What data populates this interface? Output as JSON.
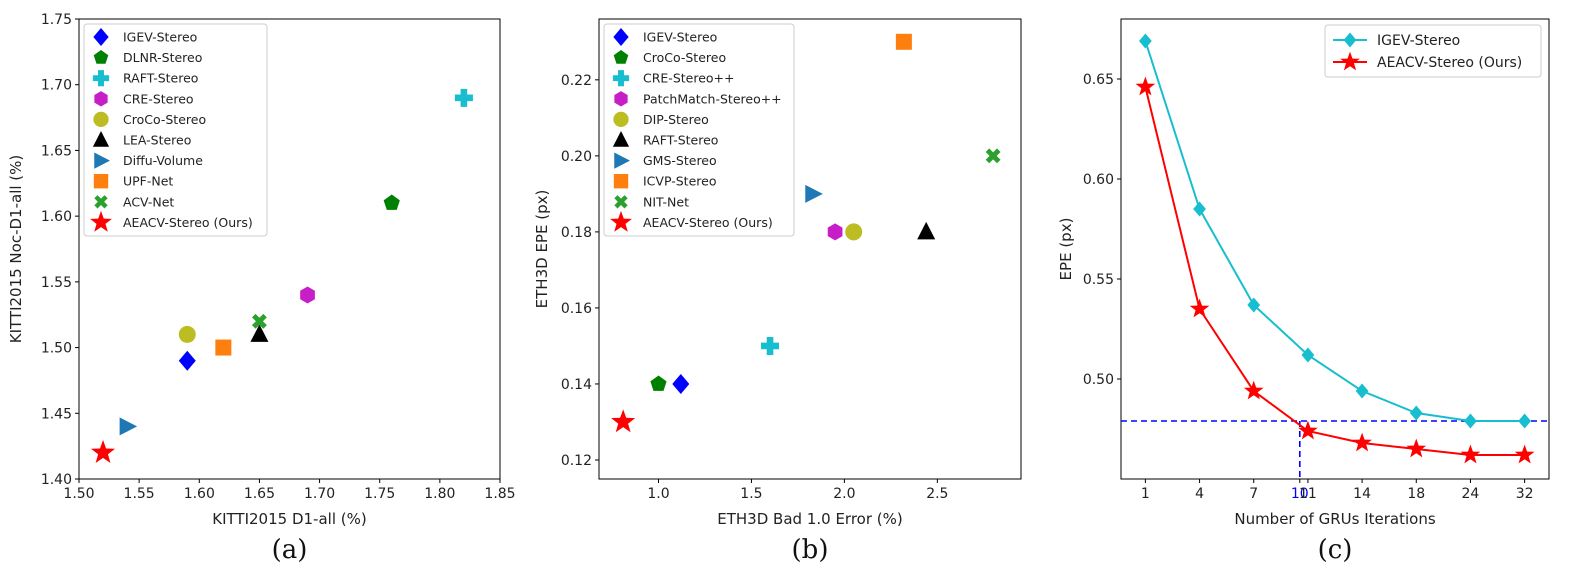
{
  "chart_data": [
    {
      "type": "scatter",
      "panel_label": "(a)",
      "xlabel": "KITTI2015 D1-all (%)",
      "ylabel": "KITTI2015 Noc-D1-all (%)",
      "xlim": [
        1.5,
        1.85
      ],
      "ylim": [
        1.4,
        1.75
      ],
      "xticks": [
        "1.50",
        "1.55",
        "1.60",
        "1.65",
        "1.70",
        "1.75",
        "1.80",
        "1.85"
      ],
      "yticks": [
        "1.40",
        "1.45",
        "1.50",
        "1.55",
        "1.60",
        "1.65",
        "1.70",
        "1.75"
      ],
      "legend_position": "top-left",
      "points": [
        {
          "name": "IGEV-Stereo",
          "x": 1.59,
          "y": 1.49,
          "marker": "diamond",
          "color": "#0000ff"
        },
        {
          "name": "DLNR-Stereo",
          "x": 1.76,
          "y": 1.61,
          "marker": "pentagon",
          "color": "#008000"
        },
        {
          "name": "RAFT-Stereo",
          "x": 1.82,
          "y": 1.69,
          "marker": "plus",
          "color": "#17becf"
        },
        {
          "name": "CRE-Stereo",
          "x": 1.69,
          "y": 1.54,
          "marker": "hexagon",
          "color": "#c71fc7"
        },
        {
          "name": "CroCo-Stereo",
          "x": 1.59,
          "y": 1.51,
          "marker": "circle",
          "color": "#bcbd22"
        },
        {
          "name": "LEA-Stereo",
          "x": 1.65,
          "y": 1.51,
          "marker": "triangle-up",
          "color": "#000000"
        },
        {
          "name": "Diffu-Volume",
          "x": 1.54,
          "y": 1.44,
          "marker": "triangle-right",
          "color": "#1f77b4"
        },
        {
          "name": "UPF-Net",
          "x": 1.62,
          "y": 1.5,
          "marker": "square",
          "color": "#ff7f0e"
        },
        {
          "name": "ACV-Net",
          "x": 1.65,
          "y": 1.52,
          "marker": "x",
          "color": "#2ca02c"
        },
        {
          "name": "AEACV-Stereo (Ours)",
          "x": 1.52,
          "y": 1.42,
          "marker": "star",
          "color": "#ff0000"
        }
      ]
    },
    {
      "type": "scatter",
      "panel_label": "(b)",
      "xlabel": "ETH3D Bad 1.0 Error (%)",
      "ylabel": "ETH3D EPE (px)",
      "xlim": [
        0.68,
        2.95
      ],
      "ylim": [
        0.115,
        0.236
      ],
      "xticks": [
        "1.0",
        "1.5",
        "2.0",
        "2.5"
      ],
      "xtick_values": [
        1.0,
        1.5,
        2.0,
        2.5
      ],
      "yticks": [
        "0.12",
        "0.14",
        "0.16",
        "0.18",
        "0.20",
        "0.22"
      ],
      "ytick_values": [
        0.12,
        0.14,
        0.16,
        0.18,
        0.2,
        0.22
      ],
      "legend_position": "top-left",
      "points": [
        {
          "name": "IGEV-Stereo",
          "x": 1.12,
          "y": 0.14,
          "marker": "diamond",
          "color": "#0000ff"
        },
        {
          "name": "CroCo-Stereo",
          "x": 1.0,
          "y": 0.14,
          "marker": "pentagon",
          "color": "#008000"
        },
        {
          "name": "CRE-Stereo++",
          "x": 1.6,
          "y": 0.15,
          "marker": "plus",
          "color": "#17becf"
        },
        {
          "name": "PatchMatch-Stereo++",
          "x": 1.95,
          "y": 0.18,
          "marker": "hexagon",
          "color": "#c71fc7"
        },
        {
          "name": "DIP-Stereo",
          "x": 2.05,
          "y": 0.18,
          "marker": "circle",
          "color": "#bcbd22"
        },
        {
          "name": "RAFT-Stereo",
          "x": 2.44,
          "y": 0.18,
          "marker": "triangle-up",
          "color": "#000000"
        },
        {
          "name": "GMS-Stereo",
          "x": 1.83,
          "y": 0.19,
          "marker": "triangle-right",
          "color": "#1f77b4"
        },
        {
          "name": "ICVP-Stereo",
          "x": 2.32,
          "y": 0.23,
          "marker": "square",
          "color": "#ff7f0e"
        },
        {
          "name": "NIT-Net",
          "x": 2.8,
          "y": 0.2,
          "marker": "x",
          "color": "#2ca02c"
        },
        {
          "name": "AEACV-Stereo (Ours)",
          "x": 0.81,
          "y": 0.13,
          "marker": "star",
          "color": "#ff0000"
        }
      ]
    },
    {
      "type": "line",
      "panel_label": "(c)",
      "xlabel": "Number of GRUs Iterations",
      "ylabel": "EPE (px)",
      "categories": [
        "1",
        "4",
        "7",
        "10",
        "11",
        "14",
        "18",
        "24",
        "32"
      ],
      "category_positions": [
        0,
        1,
        2,
        2.85,
        3,
        4,
        5,
        6,
        7
      ],
      "ylim": [
        0.45,
        0.68
      ],
      "yticks": [
        "0.50",
        "0.55",
        "0.60",
        "0.65"
      ],
      "ytick_values": [
        0.5,
        0.55,
        0.6,
        0.65
      ],
      "highlight_tick": "10",
      "highlight_color": "#0000ff",
      "legend_position": "top-right",
      "reference_line_y": 0.479,
      "series": [
        {
          "name": "IGEV-Stereo",
          "marker": "diamond",
          "color": "#17becf",
          "x": [
            "1",
            "4",
            "7",
            "11",
            "14",
            "18",
            "24",
            "32"
          ],
          "values": [
            0.669,
            0.585,
            0.537,
            0.512,
            0.494,
            0.483,
            0.479,
            0.479
          ]
        },
        {
          "name": "AEACV-Stereo (Ours)",
          "marker": "star",
          "color": "#ff0000",
          "x": [
            "1",
            "4",
            "7",
            "11",
            "14",
            "18",
            "24",
            "32"
          ],
          "values": [
            0.646,
            0.535,
            0.494,
            0.474,
            0.468,
            0.465,
            0.462,
            0.462
          ]
        }
      ]
    }
  ]
}
